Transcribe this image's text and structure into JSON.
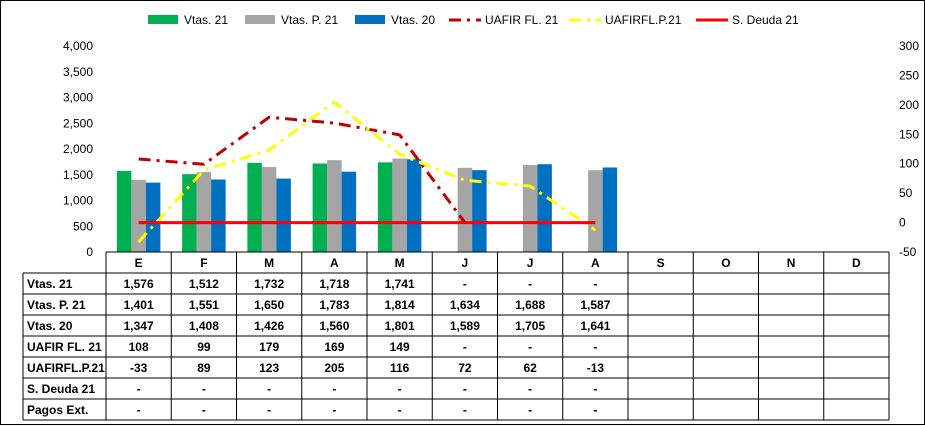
{
  "chart_data": {
    "type": "bar",
    "categories": [
      "E",
      "F",
      "M",
      "A",
      "M",
      "J",
      "J",
      "A",
      "S",
      "O",
      "N",
      "D"
    ],
    "y_left": {
      "ylim": [
        0,
        4000
      ],
      "ticks": [
        "0",
        "500",
        "1,000",
        "1,500",
        "2,000",
        "2,500",
        "3,000",
        "3,500",
        "4,000"
      ]
    },
    "y_right": {
      "ylim": [
        -50,
        300
      ],
      "ticks": [
        "-50",
        "0",
        "50",
        "100",
        "150",
        "200",
        "250",
        "300"
      ]
    },
    "legend_position": "top",
    "bar_series": [
      {
        "name": "Vtas. 21",
        "color": "#00B050",
        "values": [
          1576,
          1512,
          1732,
          1718,
          1741,
          null,
          null,
          null,
          null,
          null,
          null,
          null
        ]
      },
      {
        "name": "Vtas. P. 21",
        "color": "#A5A5A5",
        "values": [
          1401,
          1551,
          1650,
          1783,
          1814,
          1634,
          1688,
          1587,
          null,
          null,
          null,
          null
        ]
      },
      {
        "name": "Vtas. 20",
        "color": "#0070C0",
        "values": [
          1347,
          1408,
          1426,
          1560,
          1801,
          1589,
          1705,
          1641,
          null,
          null,
          null,
          null
        ]
      }
    ],
    "line_series": [
      {
        "name": "UAFIR FL. 21",
        "color": "#C00000",
        "style": "dashdot",
        "values": [
          108,
          99,
          179,
          169,
          149,
          0,
          null,
          null,
          null,
          null,
          null,
          null
        ]
      },
      {
        "name": "UAFIRFL.P.21",
        "color": "#FFFF00",
        "style": "dashdot",
        "values": [
          -33,
          89,
          123,
          205,
          116,
          72,
          62,
          -13,
          null,
          null,
          null,
          null
        ]
      },
      {
        "name": "S. Deuda 21",
        "color": "#FF0000",
        "style": "solid",
        "values": [
          0,
          0,
          0,
          0,
          0,
          0,
          0,
          0,
          null,
          null,
          null,
          null
        ]
      }
    ],
    "table": {
      "rows": [
        {
          "label": "Vtas. 21",
          "cells": [
            "1,576",
            "1,512",
            "1,732",
            "1,718",
            "1,741",
            "-",
            "-",
            "-",
            "",
            "",
            "",
            ""
          ]
        },
        {
          "label": "Vtas. P. 21",
          "cells": [
            "1,401",
            "1,551",
            "1,650",
            "1,783",
            "1,814",
            "1,634",
            "1,688",
            "1,587",
            "",
            "",
            "",
            ""
          ]
        },
        {
          "label": "Vtas. 20",
          "cells": [
            "1,347",
            "1,408",
            "1,426",
            "1,560",
            "1,801",
            "1,589",
            "1,705",
            "1,641",
            "",
            "",
            "",
            ""
          ]
        },
        {
          "label": "UAFIR FL. 21",
          "cells": [
            "108",
            "99",
            "179",
            "169",
            "149",
            "-",
            "-",
            "-",
            "",
            "",
            "",
            ""
          ]
        },
        {
          "label": "UAFIRFL.P.21",
          "cells": [
            "-33",
            "89",
            "123",
            "205",
            "116",
            "72",
            "62",
            "-13",
            "",
            "",
            "",
            ""
          ]
        },
        {
          "label": "S. Deuda 21",
          "cells": [
            "-",
            "-",
            "-",
            "-",
            "-",
            "-",
            "-",
            "-",
            "",
            "",
            "",
            ""
          ]
        },
        {
          "label": "Pagos Ext.",
          "cells": [
            "-",
            "-",
            "-",
            "-",
            "-",
            "-",
            "-",
            "-",
            "",
            "",
            "",
            ""
          ]
        }
      ]
    }
  }
}
